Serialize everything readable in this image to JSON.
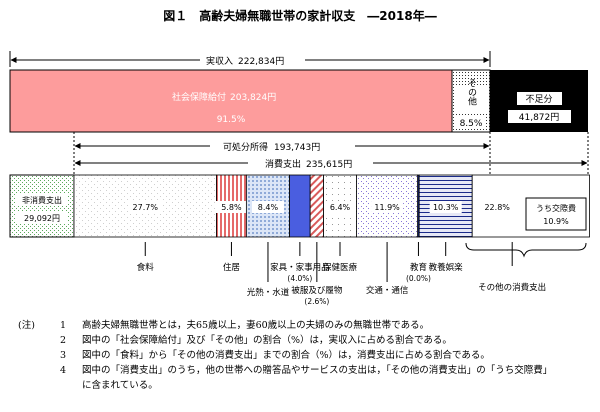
{
  "title": "図１　高齢夫婦無職世帯の家計収支　―2018年―",
  "income": {
    "label": "実収入",
    "value": "222,834円",
    "social_security_label": "社会保障給付",
    "social_security_value": "203,824円",
    "social_security_pct": "91.5%",
    "other_label": "その他",
    "other_pct": "8.5%",
    "deficit_label": "不足分",
    "deficit_value": "41,872円"
  },
  "disposable": {
    "label": "可処分所得",
    "value": "193,743円"
  },
  "consumption": {
    "label": "消費支出",
    "value": "235,615円"
  },
  "nonconsumption": {
    "label": "非消費支出",
    "value": "29,092円"
  },
  "colors": {
    "social_security": "#fd9c9c",
    "deficit": "#000000",
    "housing": "#e56a6a",
    "furniture": "#9fb6e0",
    "clothing": "#4a5ee0",
    "clothing_hatch": "#d85a5a",
    "transport": "#8a78d8",
    "education": "#1a2a8a",
    "culture": "#1a2a8a",
    "nonconsumption": "#5ba95b"
  },
  "chart_data": {
    "type": "bar",
    "title": "図１　高齢夫婦無職世帯の家計収支　―2018年―",
    "income_total": 222834,
    "income_segments": [
      {
        "name": "社会保障給付",
        "value": 203824,
        "pct": 91.5
      },
      {
        "name": "その他",
        "pct": 8.5
      },
      {
        "name": "不足分",
        "value": 41872
      }
    ],
    "disposable_income": 193743,
    "consumption_total": 235615,
    "nonconsumption": 29092,
    "categories": [
      "食料",
      "住居",
      "光熱・水道",
      "家具・家事用品",
      "被服及び履物",
      "保健医療",
      "交通・通信",
      "教育",
      "教養娯楽",
      "その他の消費支出"
    ],
    "values": [
      27.7,
      5.8,
      8.4,
      4.0,
      2.6,
      6.4,
      11.9,
      0.0,
      10.3,
      22.8
    ],
    "value_labels": [
      "27.7%",
      "5.8%",
      "8.4%",
      "(4.0%)",
      "(2.6%)",
      "6.4%",
      "11.9%",
      "(0.0%)",
      "10.3%",
      "22.8%"
    ],
    "sub_item": {
      "name": "うち交際費",
      "pct": 10.9,
      "label": "10.9%"
    }
  },
  "notes": {
    "lead": "(注)",
    "items": [
      {
        "num": "1",
        "text": "高齢夫婦無職世帯とは，夫65歳以上，妻60歳以上の夫婦のみの無職世帯である。"
      },
      {
        "num": "2",
        "text": "図中の「社会保障給付」及び「その他」の割合（%）は，実収入に占める割合である。"
      },
      {
        "num": "3",
        "text": "図中の「食料」から「その他の消費支出」までの割合（%）は，消費支出に占める割合である。"
      },
      {
        "num": "4",
        "text": "図中の「消費支出」のうち，他の世帯への贈答品やサービスの支出は，「その他の消費支出」の「うち交際費」"
      },
      {
        "num": "",
        "text": "に含まれている。"
      }
    ]
  }
}
